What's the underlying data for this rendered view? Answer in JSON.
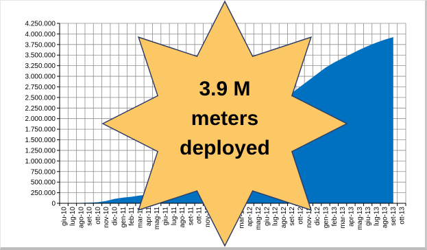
{
  "chart_data": {
    "type": "area",
    "title": "",
    "xlabel": "",
    "ylabel": "",
    "ylim": [
      0,
      4250000
    ],
    "y_ticks": [
      "0",
      "250.000",
      "500.000",
      "750.000",
      "1.000.000",
      "1.250.000",
      "1.500.000",
      "1.750.000",
      "2.000.000",
      "2.250.000",
      "2.500.000",
      "2.750.000",
      "3.000.000",
      "3.250.000",
      "3.500.000",
      "3.750.000",
      "4.000.000",
      "4.250.000"
    ],
    "categories": [
      "giu-10",
      "lug-10",
      "ago-10",
      "set-10",
      "ott-10",
      "nov-10",
      "dic-10",
      "gen-11",
      "feb-11",
      "mar-11",
      "apr-11",
      "mag-11",
      "giu-11",
      "lug-11",
      "ago-11",
      "set-11",
      "ott-11",
      "nov-11",
      "dic-11",
      "gen-12",
      "feb-12",
      "mar-12",
      "apr-12",
      "mag-12",
      "giu-12",
      "lug-12",
      "ago-12",
      "set-12",
      "ott-12",
      "nov-12",
      "dic-12",
      "gen-13",
      "feb-13",
      "mar-13",
      "apr-13",
      "mag-13",
      "giu-13",
      "lug-13",
      "ago-13",
      "set-13",
      "ott-13"
    ],
    "series": [
      {
        "name": "",
        "color": "#0070c0",
        "values": [
          0,
          2000,
          5000,
          10000,
          20000,
          50000,
          100000,
          130000,
          150000,
          180000,
          200000,
          260000,
          350000,
          450000,
          550000,
          700000,
          850000,
          1000000,
          1150000,
          1300000,
          1450000,
          1600000,
          1800000,
          2000000,
          2150000,
          2300000,
          2450000,
          2600000,
          2750000,
          2900000,
          3050000,
          3200000,
          3320000,
          3420000,
          3520000,
          3620000,
          3710000,
          3790000,
          3860000,
          3920000,
          null
        ]
      }
    ],
    "grid": true,
    "legend": "none"
  },
  "callout": {
    "lines": [
      "3.9 M",
      "meters",
      "deployed"
    ],
    "fill": "#fcc765",
    "stroke": "#2f3f66"
  }
}
